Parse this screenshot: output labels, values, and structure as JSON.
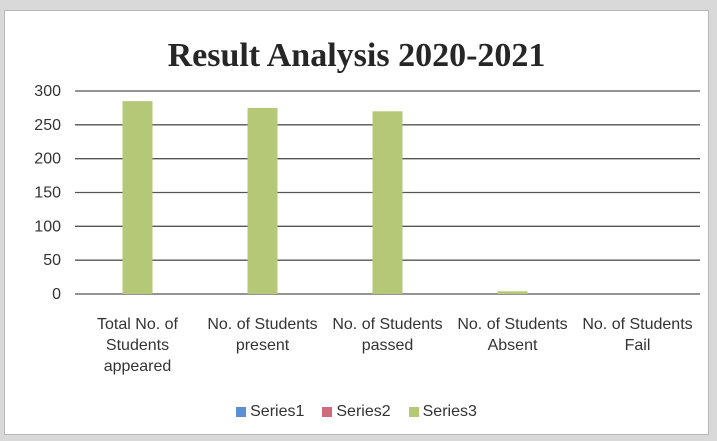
{
  "chart_data": {
    "type": "bar",
    "title": "Result Analysis 2020-2021",
    "categories": [
      [
        "Total No. of",
        "Students",
        "appeared"
      ],
      [
        "No. of Students",
        "present"
      ],
      [
        "No. of Students",
        "passed"
      ],
      [
        "No. of Students",
        "Absent"
      ],
      [
        "No. of Students",
        "Fail"
      ]
    ],
    "series": [
      {
        "name": "Series1",
        "values": [
          0,
          0,
          0,
          0,
          0
        ],
        "color": "#5b8fd6"
      },
      {
        "name": "Series2",
        "values": [
          0,
          0,
          0,
          0,
          0
        ],
        "color": "#d06b7e"
      },
      {
        "name": "Series3",
        "values": [
          285,
          275,
          270,
          4,
          0
        ],
        "color": "#b5c877"
      }
    ],
    "ylim": [
      0,
      300
    ],
    "yticks": [
      0,
      50,
      100,
      150,
      200,
      250,
      300
    ],
    "grid": true,
    "legend_position": "bottom"
  }
}
